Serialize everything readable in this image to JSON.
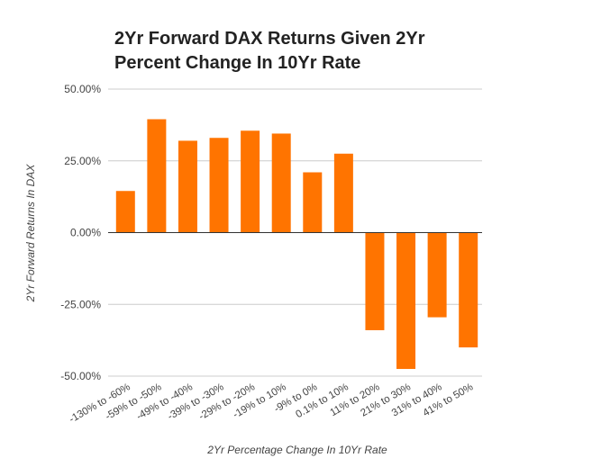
{
  "chart_data": {
    "type": "bar",
    "title_lines": [
      "2Yr Forward DAX Returns Given 2Yr",
      "Percent Change In 10Yr Rate"
    ],
    "xlabel": "2Yr Percentage Change In 10Yr Rate",
    "ylabel": "2Yr Forward Returns In DAX",
    "ylim": [
      -50,
      50
    ],
    "yticks": [
      {
        "value": 50,
        "label": "50.00%"
      },
      {
        "value": 25,
        "label": "25.00%"
      },
      {
        "value": 0,
        "label": "0.00%"
      },
      {
        "value": -25,
        "label": "-25.00%"
      },
      {
        "value": -50,
        "label": "-50.00%"
      }
    ],
    "grid": true,
    "bar_color": "#ff7400",
    "categories": [
      "-130% to -60%",
      "-59% to -50%",
      "-49% to -40%",
      "-39% to -30%",
      "-29% to -20%",
      "-19% to 10%",
      "-9% to 0%",
      "0.1% to 10%",
      "11% to 20%",
      "21% to 30%",
      "31% to 40%",
      "41% to 50%"
    ],
    "values": [
      14.5,
      39.5,
      32,
      33,
      35.5,
      34.5,
      21,
      27.5,
      -34,
      -47.5,
      -29.5,
      -40
    ]
  }
}
